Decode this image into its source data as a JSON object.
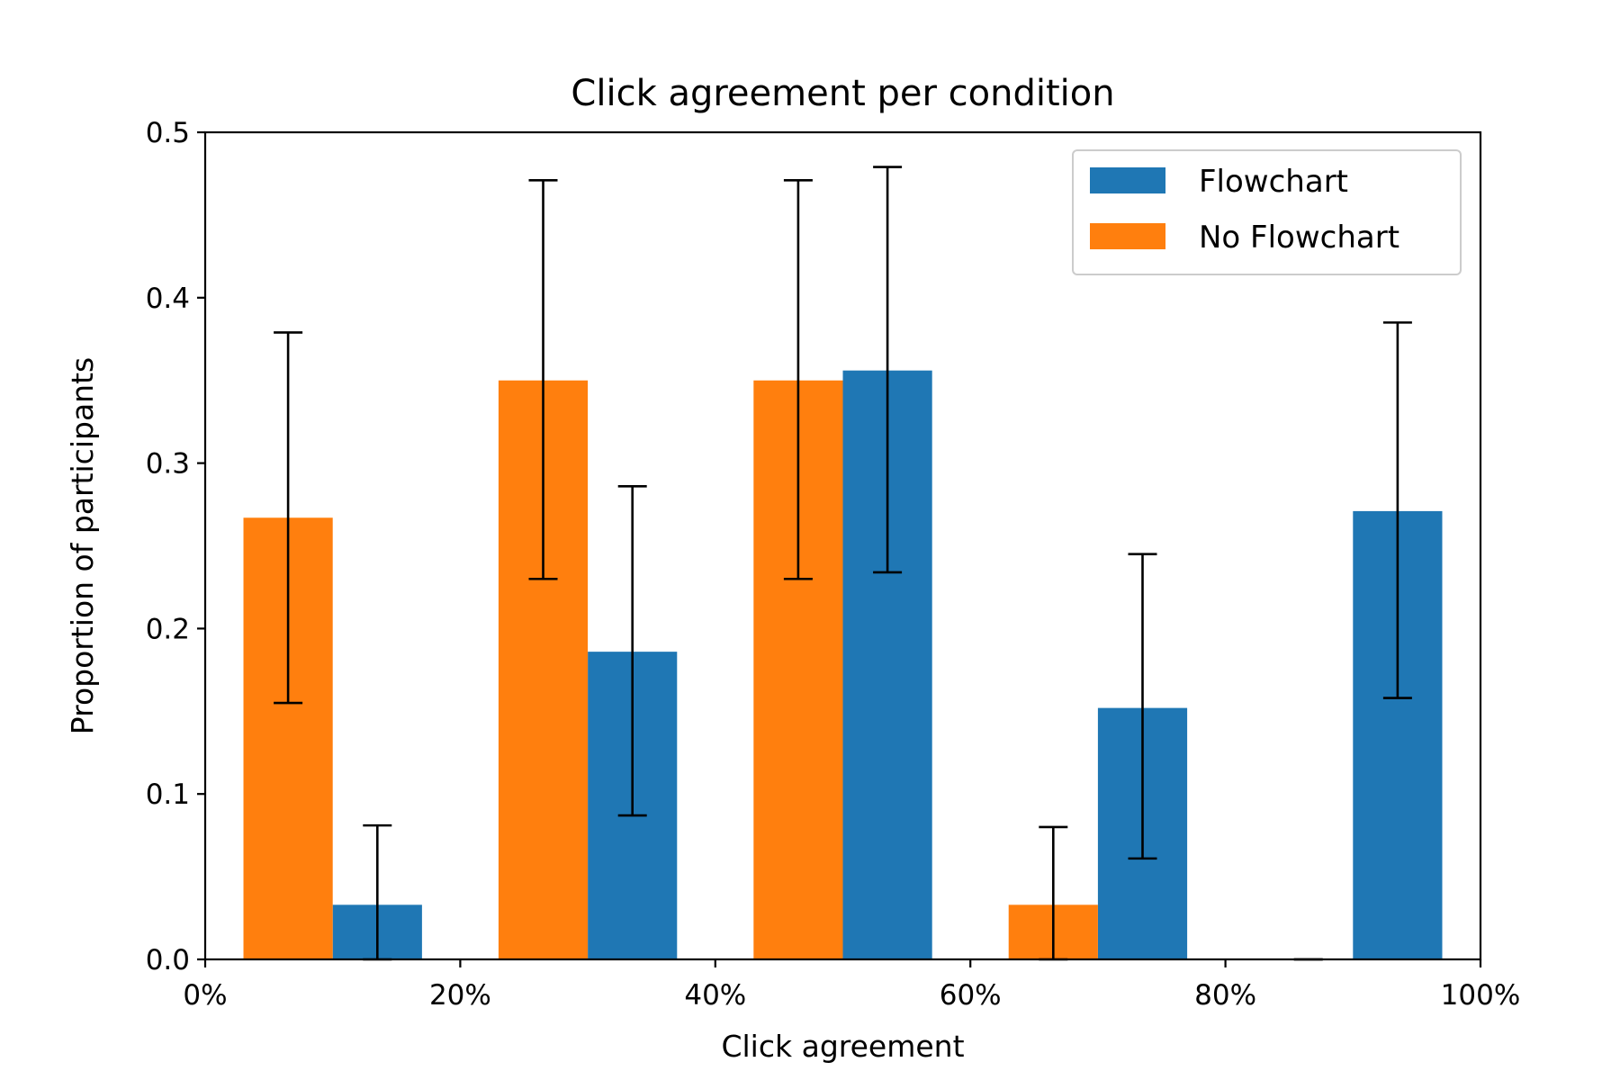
{
  "chart_data": {
    "type": "bar",
    "title": "Click agreement per condition",
    "xlabel": "Click agreement",
    "ylabel": "Proportion of participants",
    "xlim": [
      0,
      100
    ],
    "ylim": [
      0,
      0.5
    ],
    "x_ticks": [
      "0%",
      "20%",
      "40%",
      "60%",
      "80%",
      "100%"
    ],
    "x_tick_values": [
      0,
      20,
      40,
      60,
      80,
      100
    ],
    "y_ticks": [
      "0.0",
      "0.1",
      "0.2",
      "0.3",
      "0.4",
      "0.5"
    ],
    "y_tick_values": [
      0,
      0.1,
      0.2,
      0.3,
      0.4,
      0.5
    ],
    "grid": false,
    "legend_position": "top-right",
    "series": [
      {
        "name": "Flowchart",
        "color": "#1f77b4",
        "bins": [
          {
            "x0": 10,
            "x1": 17,
            "value": 0.033,
            "err_low": 0.0,
            "err_high": 0.081
          },
          {
            "x0": 30,
            "x1": 37,
            "value": 0.186,
            "err_low": 0.087,
            "err_high": 0.286
          },
          {
            "x0": 50,
            "x1": 57,
            "value": 0.356,
            "err_low": 0.234,
            "err_high": 0.479
          },
          {
            "x0": 70,
            "x1": 77,
            "value": 0.152,
            "err_low": 0.061,
            "err_high": 0.245
          },
          {
            "x0": 90,
            "x1": 97,
            "value": 0.271,
            "err_low": 0.158,
            "err_high": 0.385
          }
        ]
      },
      {
        "name": "No Flowchart",
        "color": "#ff7f0e",
        "bins": [
          {
            "x0": 3,
            "x1": 10,
            "value": 0.267,
            "err_low": 0.155,
            "err_high": 0.379
          },
          {
            "x0": 23,
            "x1": 30,
            "value": 0.35,
            "err_low": 0.23,
            "err_high": 0.471
          },
          {
            "x0": 43,
            "x1": 50,
            "value": 0.35,
            "err_low": 0.23,
            "err_high": 0.471
          },
          {
            "x0": 63,
            "x1": 70,
            "value": 0.033,
            "err_low": 0.0,
            "err_high": 0.08
          },
          {
            "x0": 83,
            "x1": 90,
            "value": 0.0,
            "err_low": 0.0,
            "err_high": 0.0
          }
        ]
      }
    ]
  }
}
